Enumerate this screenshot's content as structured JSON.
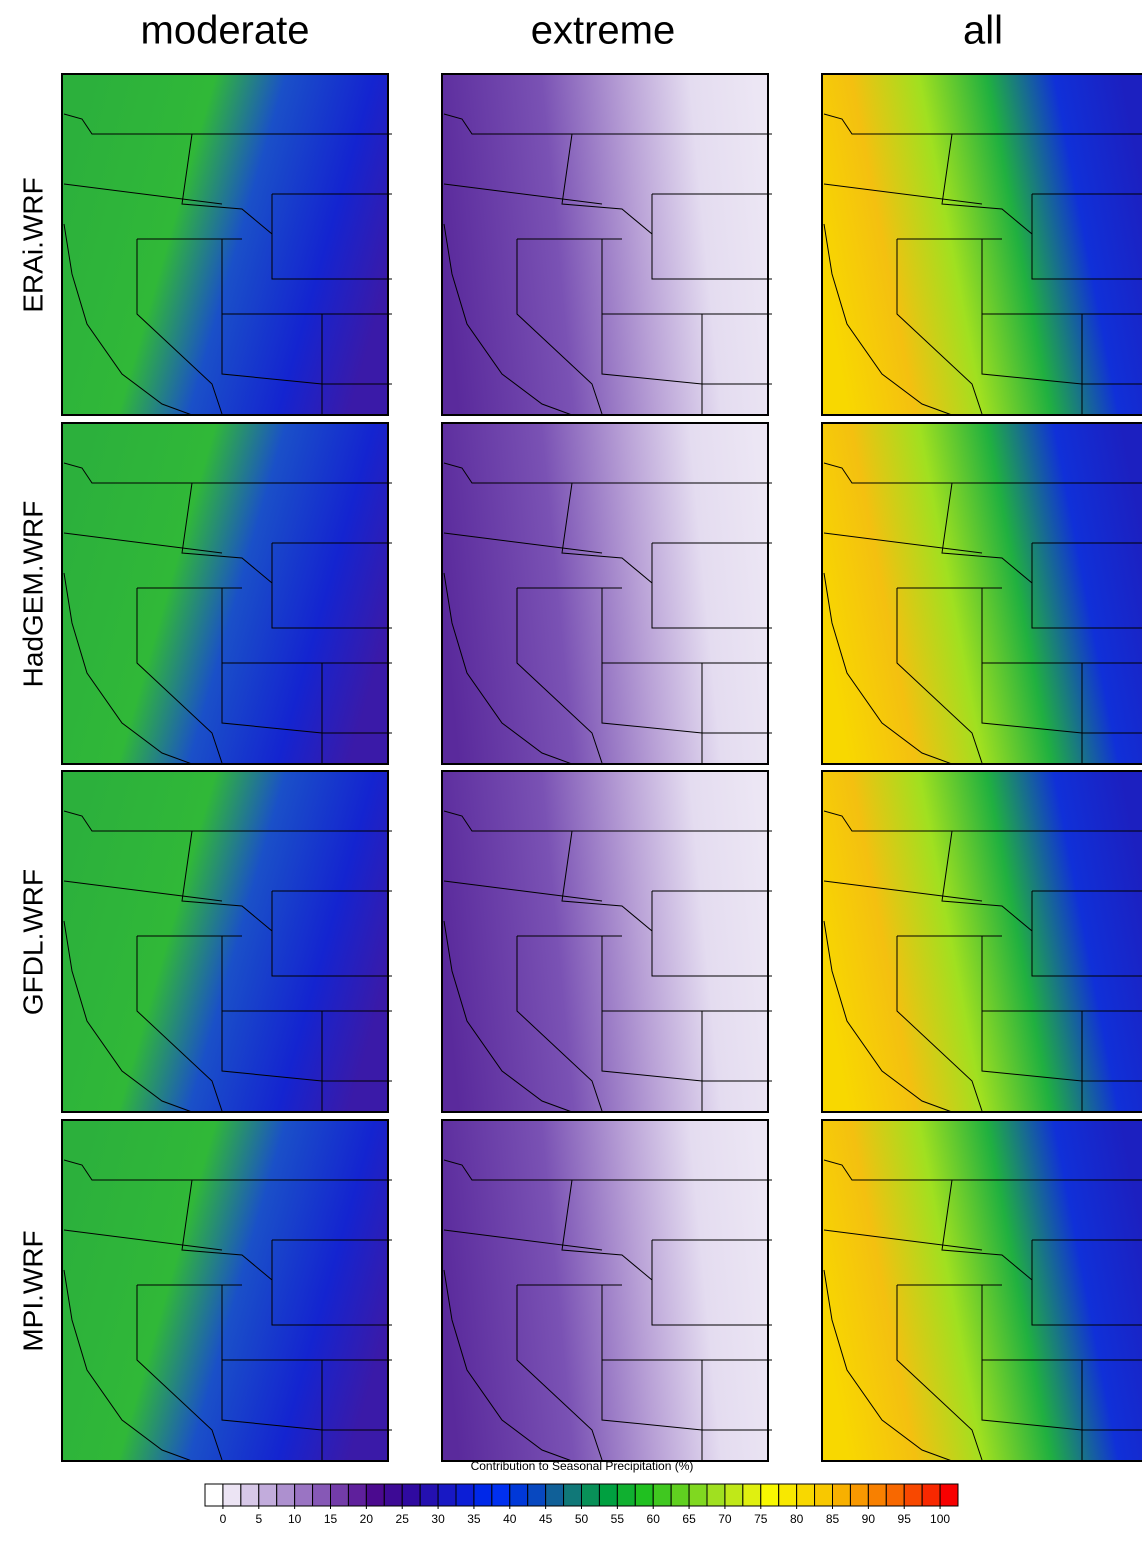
{
  "column_titles": [
    "moderate",
    "extreme",
    "all"
  ],
  "row_labels": [
    "ERAi.WRF",
    "HadGEM.WRF",
    "GFDL.WRF",
    "MPI.WRF"
  ],
  "colorbar": {
    "title": "Contribution to Seasonal Precipitation (%)",
    "ticks": [
      0,
      5,
      10,
      15,
      20,
      25,
      30,
      35,
      40,
      45,
      50,
      55,
      60,
      65,
      70,
      75,
      80,
      85,
      90,
      95,
      100
    ],
    "colors": [
      "#ffffff",
      "#ece4f4",
      "#d7c8e8",
      "#c2acdc",
      "#ad90cf",
      "#9a74c3",
      "#8658b6",
      "#733ca9",
      "#5f209c",
      "#4b0a8f",
      "#3d0a95",
      "#2f0aa0",
      "#2410b0",
      "#1818c4",
      "#0c1ed6",
      "#0028e8",
      "#0030f0",
      "#0038d8",
      "#0848c0",
      "#106098",
      "#107878",
      "#089058",
      "#00a040",
      "#10b030",
      "#20c020",
      "#40c820",
      "#60d020",
      "#80d820",
      "#a0e020",
      "#c0e818",
      "#e0f010",
      "#f8f800",
      "#f8e800",
      "#f8d800",
      "#f8c800",
      "#f8b000",
      "#f89800",
      "#f88000",
      "#f86800",
      "#f84800",
      "#f82800",
      "#f80000"
    ]
  }
}
